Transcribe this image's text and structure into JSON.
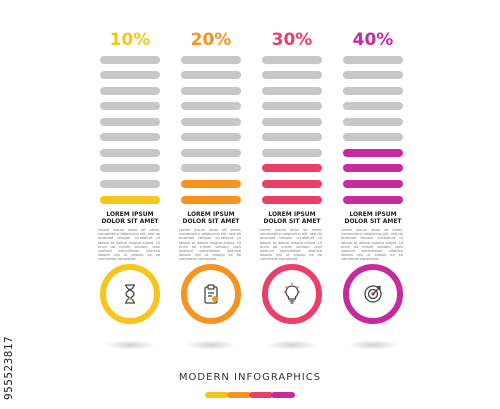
{
  "side_text": "955523817",
  "columns": [
    {
      "percent": "10%",
      "value": 0.1,
      "color": "#f7c51b",
      "title": "LOREM IPSUM\nDOLOR SIT AMET",
      "icon": "hourglass-icon"
    },
    {
      "percent": "20%",
      "value": 0.2,
      "color": "#f79320",
      "title": "LOREM IPSUM\nDOLOR SIT AMET",
      "icon": "clipboard-icon"
    },
    {
      "percent": "30%",
      "value": 0.3,
      "color": "#ec3e68",
      "title": "LOREM IPSUM\nDOLOR SIT AMET",
      "icon": "lightbulb-icon"
    },
    {
      "percent": "40%",
      "value": 0.4,
      "color": "#c72a9c",
      "title": "LOREM IPSUM\nDOLOR SIT AMET",
      "icon": "target-icon"
    }
  ],
  "footer_title": "MODERN INFOGRAPHICS",
  "legend_colors": [
    "#f7c51b",
    "#f79320",
    "#ec3e68",
    "#c72a9c"
  ],
  "body_text": "Lorem ipsum dolor sit amet, consectetur adipiscing elit, sed do eiusmod tempor incididunt ut labore et dolore magna aliqua. Ut enim ad minim veniam, quis nostrud exercitation ullamco laboris nisi ut aliquip ex ea commodo consequat."
}
